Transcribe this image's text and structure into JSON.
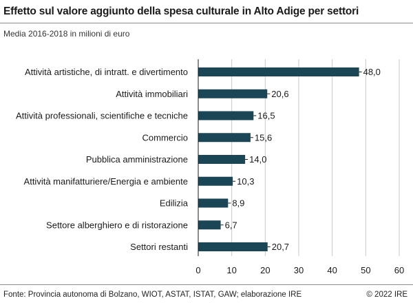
{
  "chart_data": {
    "type": "bar",
    "orientation": "horizontal",
    "title": "Effetto sul valore aggiunto della spesa culturale in Alto Adige per settori",
    "subtitle": "Media 2016-2018 in milioni di euro",
    "categories": [
      "Attività artistiche, di intratt. e divertimento",
      "Attività immobiliari",
      "Attività professionali, scientifiche e tecniche",
      "Commercio",
      "Pubblica amministrazione",
      "Attività manifatturiere/Energia e ambiente",
      "Edilizia",
      "Settore alberghiero e di ristorazione",
      "Settori restanti"
    ],
    "values": [
      48.0,
      20.6,
      16.5,
      15.6,
      14.0,
      10.3,
      8.9,
      6.7,
      20.7
    ],
    "value_labels": [
      "48,0",
      "20,6",
      "16,5",
      "15,6",
      "14,0",
      "10,3",
      "8,9",
      "6,7",
      "20,7"
    ],
    "xlim": [
      0,
      60
    ],
    "xticks": [
      0,
      10,
      20,
      30,
      40,
      50,
      60
    ],
    "xtick_labels": [
      "0",
      "10",
      "20",
      "30",
      "40",
      "50",
      "60"
    ],
    "grid": true,
    "bar_color": "#1b4655"
  },
  "footer": {
    "source": "Fonte: Provincia autonoma di Bolzano, WIOT, ASTAT, ISTAT, GAW; elaborazione IRE",
    "copyright": "© 2022 IRE"
  }
}
